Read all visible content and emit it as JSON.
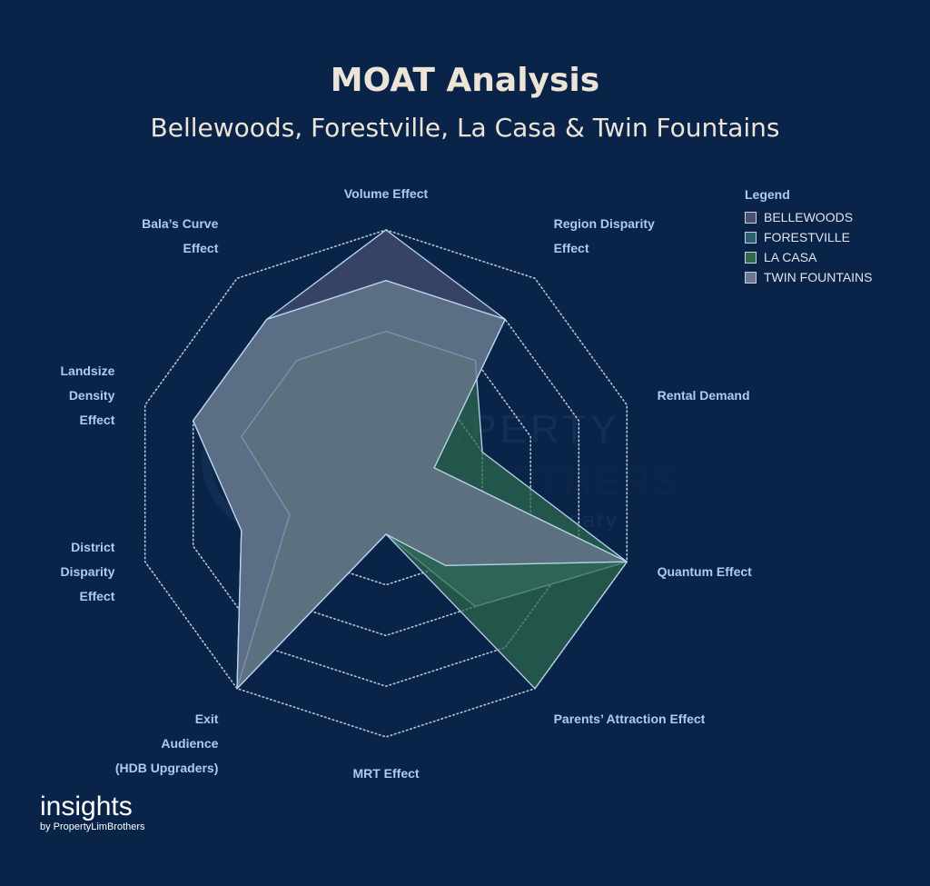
{
  "title": "MOAT Analysis",
  "subtitle": "Bellewoods, Forestville, La Casa & Twin Fountains",
  "legend": {
    "title": "Legend",
    "items": [
      {
        "label": "BELLEWOODS",
        "color": "#4a5070"
      },
      {
        "label": "FORESTVILLE",
        "color": "#2a6070"
      },
      {
        "label": "LA CASA",
        "color": "#2f6a4c"
      },
      {
        "label": "TWIN FOUNTAINS",
        "color": "#6f7690"
      }
    ]
  },
  "watermark": {
    "line1": "PROPERTY",
    "line2": "LIMBROTHERS",
    "line3": "Real Estate Visionary"
  },
  "branding": {
    "line1": "insights",
    "line2": "by PropertyLimBrothers"
  },
  "chart_data": {
    "type": "radar",
    "title": "MOAT Analysis",
    "subtitle": "Bellewoods, Forestville, La Casa & Twin Fountains",
    "rmax": 5,
    "rings": [
      1,
      2,
      3,
      4,
      5
    ],
    "grid": "dotted",
    "legend_position": "top-right",
    "axes": [
      {
        "name": "Volume Effect",
        "label_lines": [
          "Volume Effect"
        ]
      },
      {
        "name": "Region Disparity Effect",
        "label_lines": [
          "Region Disparity",
          "Effect"
        ]
      },
      {
        "name": "Rental Demand",
        "label_lines": [
          "Rental Demand"
        ]
      },
      {
        "name": "Quantum Effect",
        "label_lines": [
          "Quantum Effect"
        ]
      },
      {
        "name": "Parents' Attraction Effect",
        "label_lines": [
          "Parents’ Attraction Effect"
        ]
      },
      {
        "name": "MRT Effect",
        "label_lines": [
          "MRT Effect"
        ]
      },
      {
        "name": "Exit Audience (HDB Upgraders)",
        "label_lines": [
          "Exit",
          "Audience",
          "(HDB Upgraders)"
        ]
      },
      {
        "name": "District Disparity Effect",
        "label_lines": [
          "District",
          "Disparity",
          "Effect"
        ]
      },
      {
        "name": "Landsize Density Effect",
        "label_lines": [
          "Landsize",
          "Density",
          "Effect"
        ]
      },
      {
        "name": "Bala's Curve Effect",
        "label_lines": [
          "Bala’s Curve",
          "Effect"
        ]
      }
    ],
    "series": [
      {
        "name": "BELLEWOODS",
        "values": [
          5,
          4,
          1,
          5,
          3,
          1,
          5,
          3,
          4,
          4
        ],
        "color": "#4a5070"
      },
      {
        "name": "FORESTVILLE",
        "values": [
          4,
          4,
          1,
          5,
          3,
          1,
          5,
          3,
          4,
          4
        ],
        "color": "#2a6070"
      },
      {
        "name": "LA CASA",
        "values": [
          3,
          3,
          2,
          5,
          5,
          1,
          5,
          2,
          3,
          3
        ],
        "color": "#2f6a4c"
      },
      {
        "name": "TWIN FOUNTAINS",
        "values": [
          4,
          4,
          1,
          5,
          2,
          1,
          5,
          3,
          4,
          4
        ],
        "color": "#6f7690"
      }
    ]
  }
}
